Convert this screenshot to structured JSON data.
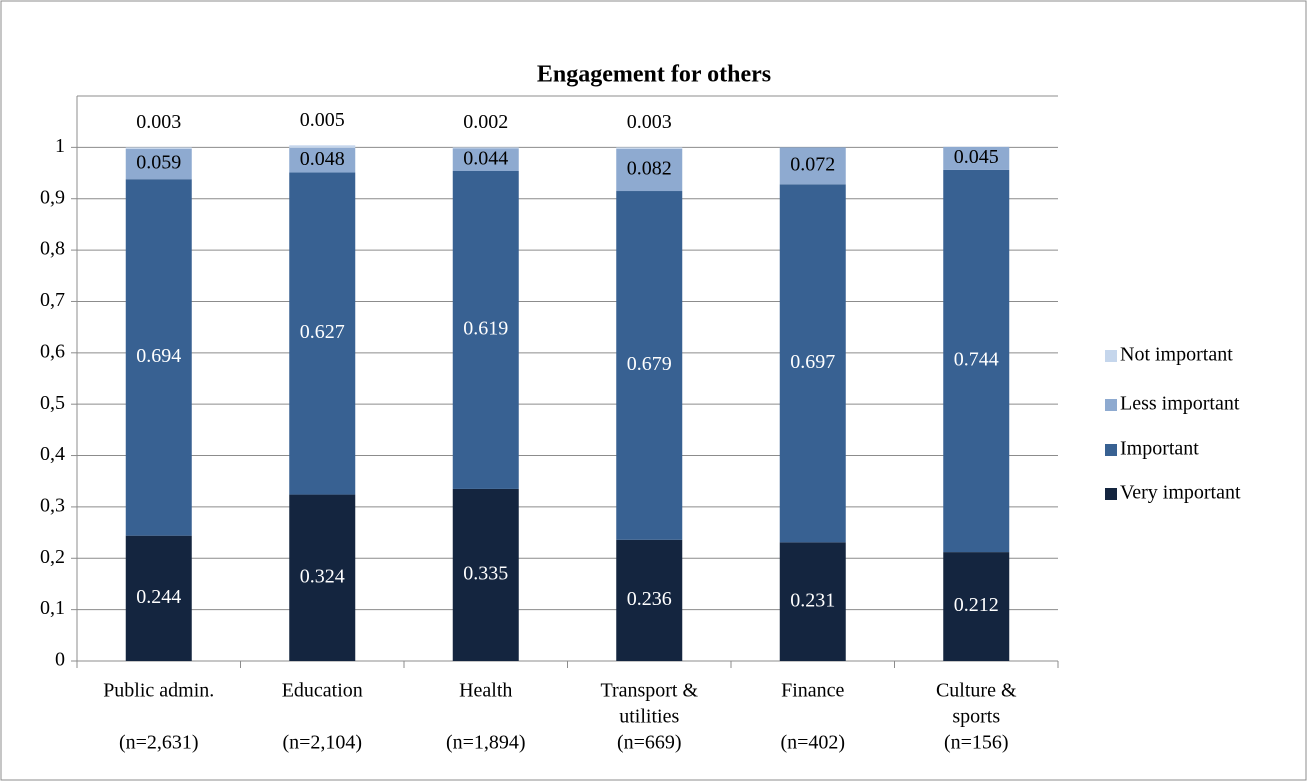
{
  "chart_data": {
    "type": "stacked_bar",
    "title": "Engagement for others",
    "categories": [
      [
        "Public admin.",
        "(n=2,631)"
      ],
      [
        "Education",
        "(n=2,104)"
      ],
      [
        "Health",
        "(n=1,894)"
      ],
      [
        "Transport &",
        "utilities",
        "(n=669)"
      ],
      [
        "Finance",
        "(n=402)"
      ],
      [
        "Culture &",
        "sports",
        "(n=156)"
      ]
    ],
    "series": [
      {
        "name": "Very important",
        "color": "#14253f",
        "label_color": "#ffffff",
        "values": [
          0.244,
          0.324,
          0.335,
          0.236,
          0.231,
          0.212
        ]
      },
      {
        "name": "Important",
        "color": "#386192",
        "label_color": "#ffffff",
        "values": [
          0.694,
          0.627,
          0.619,
          0.679,
          0.697,
          0.744
        ]
      },
      {
        "name": "Less important",
        "color": "#8eaad0",
        "label_color": "#000000",
        "values": [
          0.059,
          0.048,
          0.044,
          0.082,
          0.072,
          0.045
        ]
      },
      {
        "name": "Not important",
        "color": "#c5d6ec",
        "label_color": "#000000",
        "values": [
          0.003,
          0.005,
          0.002,
          0.003,
          null,
          null
        ]
      }
    ],
    "ylim": [
      0,
      1.1
    ],
    "yticks": [
      0,
      {
        "value": 0.1,
        "label": "0,1"
      },
      {
        "value": 0.2,
        "label": "0,2"
      },
      {
        "value": 0.3,
        "label": "0,3"
      },
      {
        "value": 0.4,
        "label": "0,4"
      },
      {
        "value": 0.5,
        "label": "0,5"
      },
      {
        "value": 0.6,
        "label": "0,6"
      },
      {
        "value": 0.7,
        "label": "0,7"
      },
      {
        "value": 0.8,
        "label": "0,8"
      },
      {
        "value": 0.9,
        "label": "0,9"
      },
      1
    ],
    "grid": true,
    "legend": "right"
  }
}
